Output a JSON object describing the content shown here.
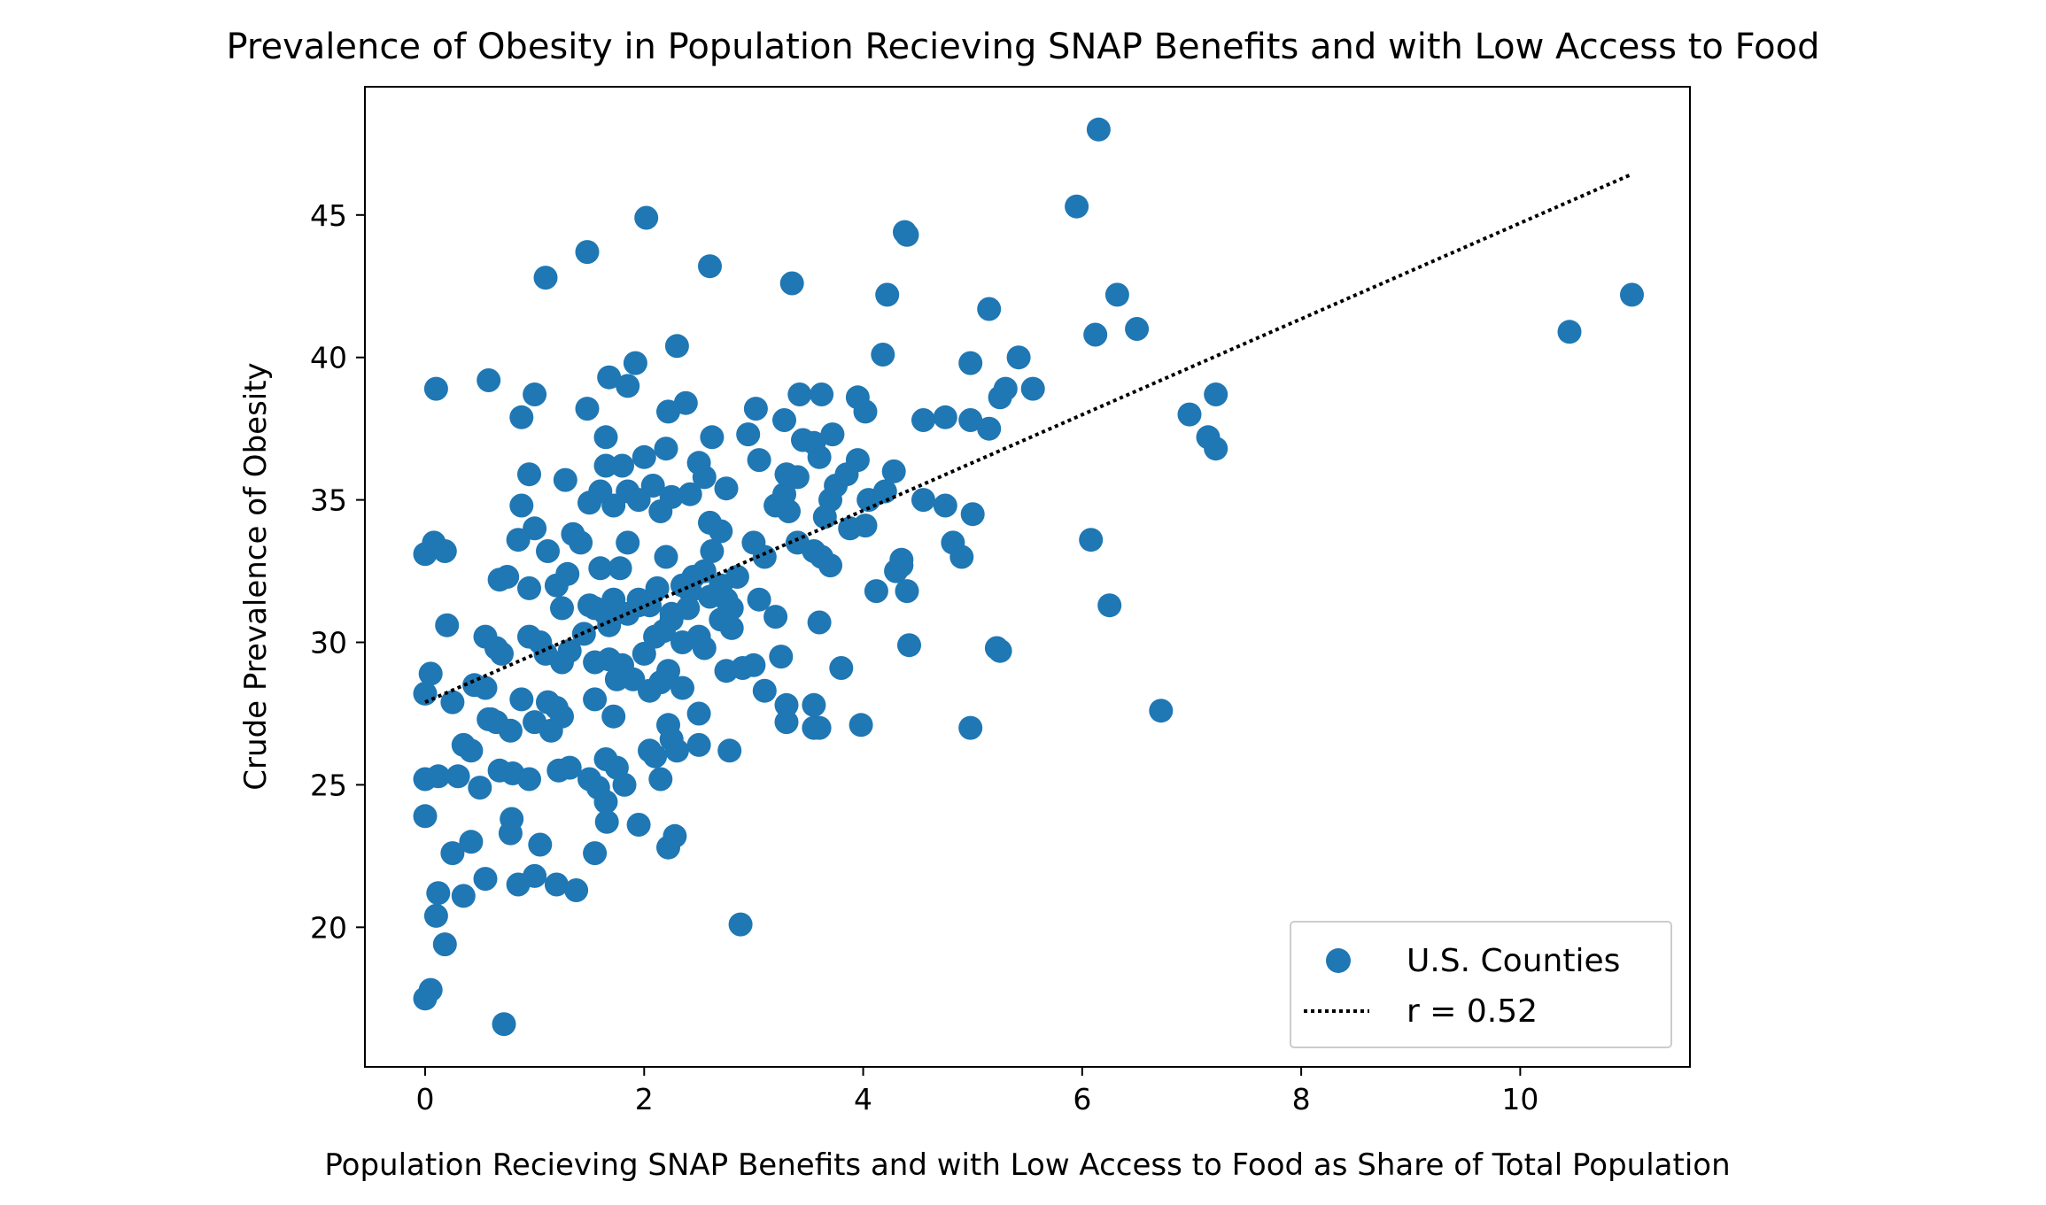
{
  "chart_data": {
    "type": "scatter",
    "title": "Prevalence of Obesity in Population Recieving SNAP Benefits and with Low Access to Food",
    "xlabel": "Population Recieving SNAP Benefits and with Low Access to Food as Share of Total Population",
    "ylabel": "Crude Prevalence of Obesity",
    "xlim": [
      -0.55,
      11.55
    ],
    "ylim": [
      15.1,
      49.5
    ],
    "xticks": [
      0,
      2,
      4,
      6,
      8,
      10
    ],
    "yticks": [
      20,
      25,
      30,
      35,
      40,
      45
    ],
    "grid": false,
    "legend_position": "lower-right",
    "series": [
      {
        "name": "U.S. Counties",
        "kind": "scatter",
        "color": "#1f77b4",
        "points": [
          [
            0.0,
            17.5
          ],
          [
            0.05,
            17.8
          ],
          [
            0.72,
            16.6
          ],
          [
            0.1,
            20.4
          ],
          [
            0.18,
            19.4
          ],
          [
            0.12,
            21.2
          ],
          [
            0.35,
            21.1
          ],
          [
            0.25,
            22.6
          ],
          [
            0.55,
            21.7
          ],
          [
            0.85,
            21.5
          ],
          [
            1.0,
            21.8
          ],
          [
            1.2,
            21.5
          ],
          [
            1.38,
            21.3
          ],
          [
            0.42,
            23.0
          ],
          [
            0.78,
            23.3
          ],
          [
            0.79,
            23.8
          ],
          [
            1.05,
            22.9
          ],
          [
            1.55,
            22.6
          ],
          [
            1.95,
            23.6
          ],
          [
            2.22,
            22.8
          ],
          [
            2.28,
            23.2
          ],
          [
            0.0,
            23.9
          ],
          [
            0.0,
            25.2
          ],
          [
            0.12,
            25.3
          ],
          [
            0.3,
            25.3
          ],
          [
            0.5,
            24.9
          ],
          [
            0.68,
            25.5
          ],
          [
            0.8,
            25.4
          ],
          [
            0.95,
            25.2
          ],
          [
            0.35,
            26.4
          ],
          [
            0.42,
            26.2
          ],
          [
            0.58,
            27.3
          ],
          [
            0.65,
            27.2
          ],
          [
            0.78,
            26.9
          ],
          [
            1.0,
            27.2
          ],
          [
            1.15,
            26.9
          ],
          [
            1.22,
            25.5
          ],
          [
            1.32,
            25.6
          ],
          [
            1.5,
            25.2
          ],
          [
            1.58,
            24.9
          ],
          [
            1.65,
            24.4
          ],
          [
            1.66,
            23.7
          ],
          [
            1.65,
            25.9
          ],
          [
            1.75,
            25.6
          ],
          [
            1.82,
            25.0
          ],
          [
            2.05,
            26.2
          ],
          [
            2.1,
            26.0
          ],
          [
            2.15,
            25.2
          ],
          [
            2.22,
            27.1
          ],
          [
            2.25,
            26.6
          ],
          [
            2.3,
            26.2
          ],
          [
            2.5,
            26.4
          ],
          [
            2.5,
            27.5
          ],
          [
            2.78,
            26.2
          ],
          [
            2.88,
            20.1
          ],
          [
            0.0,
            28.2
          ],
          [
            0.05,
            28.9
          ],
          [
            0.25,
            27.9
          ],
          [
            0.45,
            28.5
          ],
          [
            0.55,
            28.4
          ],
          [
            0.6,
            27.3
          ],
          [
            0.88,
            28.0
          ],
          [
            1.12,
            27.9
          ],
          [
            1.25,
            27.4
          ],
          [
            1.2,
            27.7
          ],
          [
            1.55,
            28.0
          ],
          [
            1.72,
            27.4
          ],
          [
            1.75,
            28.7
          ],
          [
            1.55,
            29.3
          ],
          [
            1.68,
            29.4
          ],
          [
            1.8,
            29.2
          ],
          [
            1.9,
            28.7
          ],
          [
            2.05,
            28.3
          ],
          [
            2.15,
            28.6
          ],
          [
            2.22,
            29.0
          ],
          [
            2.35,
            28.4
          ],
          [
            0.2,
            30.6
          ],
          [
            0.55,
            30.2
          ],
          [
            0.65,
            29.8
          ],
          [
            0.7,
            29.6
          ],
          [
            0.95,
            30.2
          ],
          [
            1.05,
            30.0
          ],
          [
            1.1,
            29.6
          ],
          [
            1.25,
            29.3
          ],
          [
            1.32,
            29.7
          ],
          [
            1.45,
            30.3
          ],
          [
            1.55,
            31.2
          ],
          [
            1.68,
            30.6
          ],
          [
            1.85,
            31.0
          ],
          [
            1.95,
            31.3
          ],
          [
            2.0,
            29.6
          ],
          [
            2.1,
            30.2
          ],
          [
            2.18,
            30.4
          ],
          [
            2.25,
            31.0
          ],
          [
            2.35,
            30.0
          ],
          [
            2.42,
            31.8
          ],
          [
            2.5,
            30.2
          ],
          [
            2.55,
            29.8
          ],
          [
            2.6,
            31.6
          ],
          [
            2.7,
            30.8
          ],
          [
            2.75,
            29.0
          ],
          [
            2.8,
            31.2
          ],
          [
            2.9,
            29.1
          ],
          [
            3.0,
            29.2
          ],
          [
            3.05,
            31.5
          ],
          [
            3.2,
            30.9
          ],
          [
            3.25,
            29.5
          ],
          [
            3.3,
            27.8
          ],
          [
            3.3,
            27.2
          ],
          [
            3.1,
            28.3
          ],
          [
            3.55,
            27.0
          ],
          [
            3.6,
            27.0
          ],
          [
            3.55,
            27.8
          ],
          [
            3.6,
            30.7
          ],
          [
            3.8,
            29.1
          ],
          [
            3.98,
            27.1
          ],
          [
            0.0,
            33.1
          ],
          [
            0.08,
            33.5
          ],
          [
            0.18,
            33.2
          ],
          [
            0.68,
            32.2
          ],
          [
            0.75,
            32.3
          ],
          [
            0.85,
            33.6
          ],
          [
            0.95,
            31.9
          ],
          [
            1.0,
            34.0
          ],
          [
            1.12,
            33.2
          ],
          [
            1.2,
            32.0
          ],
          [
            1.25,
            31.2
          ],
          [
            1.3,
            32.4
          ],
          [
            1.35,
            33.8
          ],
          [
            1.42,
            33.5
          ],
          [
            1.5,
            31.3
          ],
          [
            1.6,
            32.6
          ],
          [
            1.65,
            31.0
          ],
          [
            1.72,
            31.5
          ],
          [
            1.78,
            32.6
          ],
          [
            1.85,
            33.5
          ],
          [
            1.95,
            31.5
          ],
          [
            2.05,
            31.3
          ],
          [
            2.12,
            31.9
          ],
          [
            2.2,
            33.0
          ],
          [
            2.25,
            30.8
          ],
          [
            2.35,
            32.0
          ],
          [
            2.4,
            31.2
          ],
          [
            2.45,
            32.3
          ],
          [
            2.55,
            32.5
          ],
          [
            2.62,
            33.2
          ],
          [
            2.7,
            32.0
          ],
          [
            2.75,
            31.5
          ],
          [
            2.8,
            30.5
          ],
          [
            2.85,
            32.3
          ],
          [
            3.0,
            33.5
          ],
          [
            3.1,
            33.0
          ],
          [
            3.2,
            34.8
          ],
          [
            3.28,
            35.2
          ],
          [
            3.32,
            34.6
          ],
          [
            3.4,
            33.5
          ],
          [
            3.55,
            33.2
          ],
          [
            3.62,
            33.0
          ],
          [
            3.7,
            32.7
          ],
          [
            3.88,
            34.0
          ],
          [
            4.02,
            34.1
          ],
          [
            4.12,
            31.8
          ],
          [
            4.3,
            32.5
          ],
          [
            4.35,
            32.7
          ],
          [
            4.4,
            31.8
          ],
          [
            4.42,
            29.9
          ],
          [
            4.35,
            32.9
          ],
          [
            0.88,
            34.8
          ],
          [
            0.95,
            35.9
          ],
          [
            1.28,
            35.7
          ],
          [
            1.5,
            34.9
          ],
          [
            1.6,
            35.3
          ],
          [
            1.65,
            36.2
          ],
          [
            1.72,
            34.8
          ],
          [
            1.8,
            36.2
          ],
          [
            1.85,
            35.3
          ],
          [
            1.95,
            35.0
          ],
          [
            2.0,
            36.5
          ],
          [
            2.08,
            35.5
          ],
          [
            2.15,
            34.6
          ],
          [
            2.2,
            36.8
          ],
          [
            2.25,
            35.1
          ],
          [
            2.42,
            35.2
          ],
          [
            2.5,
            36.3
          ],
          [
            2.55,
            35.8
          ],
          [
            2.6,
            34.2
          ],
          [
            2.7,
            33.9
          ],
          [
            2.75,
            35.4
          ],
          [
            3.05,
            36.4
          ],
          [
            3.3,
            35.9
          ],
          [
            3.4,
            35.8
          ],
          [
            3.45,
            37.1
          ],
          [
            3.55,
            37.0
          ],
          [
            3.6,
            36.5
          ],
          [
            3.65,
            34.4
          ],
          [
            3.7,
            35.0
          ],
          [
            3.75,
            35.5
          ],
          [
            3.85,
            35.9
          ],
          [
            3.95,
            36.4
          ],
          [
            4.05,
            35.0
          ],
          [
            4.2,
            35.3
          ],
          [
            4.28,
            36.0
          ],
          [
            4.55,
            35.0
          ],
          [
            4.75,
            34.8
          ],
          [
            4.82,
            33.5
          ],
          [
            4.9,
            33.0
          ],
          [
            5.0,
            34.5
          ],
          [
            0.1,
            38.9
          ],
          [
            0.58,
            39.2
          ],
          [
            0.88,
            37.9
          ],
          [
            1.0,
            38.7
          ],
          [
            1.48,
            38.2
          ],
          [
            1.65,
            37.2
          ],
          [
            1.68,
            39.3
          ],
          [
            1.85,
            39.0
          ],
          [
            1.92,
            39.8
          ],
          [
            2.22,
            38.1
          ],
          [
            2.38,
            38.4
          ],
          [
            2.62,
            37.2
          ],
          [
            2.95,
            37.3
          ],
          [
            3.02,
            38.2
          ],
          [
            3.28,
            37.8
          ],
          [
            3.42,
            38.7
          ],
          [
            3.62,
            38.7
          ],
          [
            3.72,
            37.3
          ],
          [
            3.95,
            38.6
          ],
          [
            4.02,
            38.1
          ],
          [
            4.55,
            37.8
          ],
          [
            4.75,
            37.9
          ],
          [
            4.98,
            37.8
          ],
          [
            5.15,
            37.5
          ],
          [
            5.25,
            38.6
          ],
          [
            5.3,
            38.9
          ],
          [
            5.55,
            38.9
          ],
          [
            4.98,
            39.8
          ],
          [
            5.42,
            40.0
          ],
          [
            4.18,
            40.1
          ],
          [
            2.3,
            40.4
          ],
          [
            1.1,
            42.8
          ],
          [
            1.48,
            43.7
          ],
          [
            2.02,
            44.9
          ],
          [
            2.6,
            43.2
          ],
          [
            3.35,
            42.6
          ],
          [
            4.22,
            42.2
          ],
          [
            4.38,
            44.4
          ],
          [
            4.4,
            44.3
          ],
          [
            5.15,
            41.7
          ],
          [
            5.95,
            45.3
          ],
          [
            6.15,
            48.0
          ],
          [
            6.12,
            40.8
          ],
          [
            6.32,
            42.2
          ],
          [
            6.5,
            41.0
          ],
          [
            6.08,
            33.6
          ],
          [
            6.25,
            31.3
          ],
          [
            6.72,
            27.6
          ],
          [
            4.98,
            27.0
          ],
          [
            5.22,
            29.8
          ],
          [
            5.25,
            29.7
          ],
          [
            6.98,
            38.0
          ],
          [
            7.15,
            37.2
          ],
          [
            7.22,
            36.8
          ],
          [
            7.22,
            38.7
          ],
          [
            10.45,
            40.9
          ],
          [
            11.02,
            42.2
          ]
        ]
      },
      {
        "name": "r = 0.52",
        "kind": "line",
        "style": "dotted",
        "color": "#000000",
        "points": [
          [
            0.0,
            27.9
          ],
          [
            11.0,
            46.4
          ]
        ]
      }
    ]
  }
}
